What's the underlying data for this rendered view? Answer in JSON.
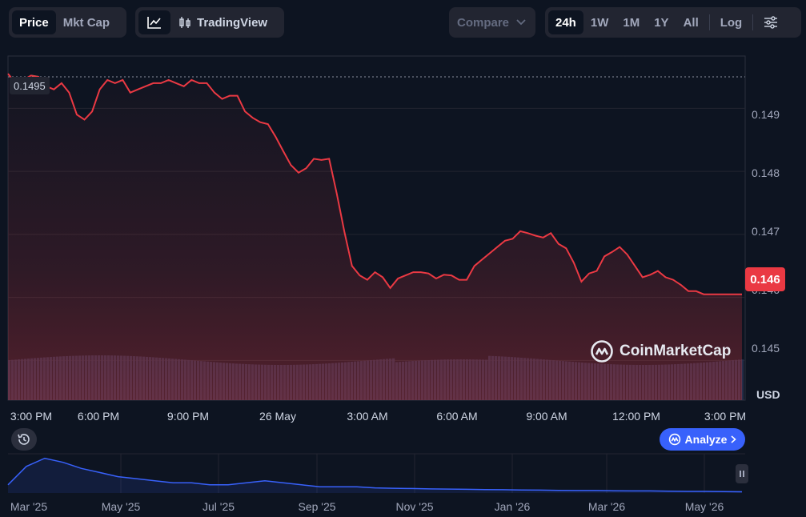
{
  "toolbar": {
    "price_label": "Price",
    "mktcap_label": "Mkt Cap",
    "tradingview_label": "TradingView",
    "compare_label": "Compare",
    "ranges": [
      "24h",
      "1W",
      "1M",
      "1Y",
      "All"
    ],
    "active_range": "24h",
    "log_label": "Log"
  },
  "badges": {
    "current_price": "0.146",
    "start_price": "0.1495"
  },
  "watermark": "CoinMarketCap",
  "analyze_label": "Analyze",
  "colors": {
    "background": "#0d1421",
    "down": "#ea3943",
    "up": "#16c784",
    "volume": "#2a3350",
    "navigator": "#3861fb"
  },
  "chart_data": [
    {
      "type": "line",
      "x_axis": [
        "3:00 PM",
        "6:00 PM",
        "9:00 PM",
        "26 May",
        "3:00 AM",
        "6:00 AM",
        "9:00 AM",
        "12:00 PM",
        "3:00 PM"
      ],
      "y_ticks": [
        0.149,
        0.148,
        0.147,
        0.146,
        0.145
      ],
      "y_tick_labels": [
        "0.149",
        "0.148",
        "0.147",
        "0.146",
        "0.145"
      ],
      "ylim": [
        0.14437,
        0.14983
      ],
      "unit_label": "USD",
      "reference_price": 0.1495,
      "grid": true,
      "series": [
        {
          "x": [
            0,
            0.25,
            0.5,
            0.75,
            1,
            1.25,
            1.5,
            1.75,
            2,
            2.25,
            2.5,
            2.75,
            3,
            3.25,
            3.5,
            3.75,
            4,
            4.25,
            4.5,
            4.75,
            5,
            5.25,
            5.5,
            5.75,
            6,
            6.25,
            6.5,
            6.75,
            7,
            7.25,
            7.5,
            7.75,
            8,
            8.25,
            8.5,
            8.75,
            9,
            9.25,
            9.5,
            9.75,
            10,
            10.25,
            10.5,
            10.75,
            11,
            11.25,
            11.5,
            11.75,
            12,
            12.25,
            12.5,
            12.75,
            13,
            13.25,
            13.5,
            13.75,
            14,
            14.25,
            14.5,
            14.75,
            15,
            15.25,
            15.5,
            15.75,
            16,
            16.25,
            16.5,
            16.75,
            17,
            17.25,
            17.5,
            17.75,
            18,
            18.25,
            18.5,
            18.75,
            19,
            19.25,
            19.5,
            19.75,
            20,
            20.25,
            20.5,
            20.75,
            21,
            21.25,
            21.5,
            21.75,
            22,
            22.25,
            22.5,
            22.75,
            23,
            23.25,
            23.5,
            23.75,
            24
          ],
          "values": [
            0.14955,
            0.1494,
            0.14945,
            0.14952,
            0.1495,
            0.14935,
            0.1493,
            0.1494,
            0.14925,
            0.1489,
            0.14882,
            0.14895,
            0.1493,
            0.14945,
            0.1494,
            0.14945,
            0.14925,
            0.1493,
            0.14935,
            0.1494,
            0.1494,
            0.14945,
            0.1494,
            0.14935,
            0.14945,
            0.1494,
            0.1494,
            0.14925,
            0.14915,
            0.1492,
            0.1492,
            0.14895,
            0.14885,
            0.14878,
            0.14875,
            0.14855,
            0.14832,
            0.1481,
            0.14798,
            0.14805,
            0.1482,
            0.14818,
            0.1482,
            0.14765,
            0.14704,
            0.1465,
            0.14635,
            0.14628,
            0.1464,
            0.14632,
            0.14615,
            0.1463,
            0.14635,
            0.1464,
            0.1464,
            0.14638,
            0.1463,
            0.14636,
            0.14635,
            0.14628,
            0.14628,
            0.1465,
            0.1466,
            0.1467,
            0.1468,
            0.1469,
            0.14693,
            0.14705,
            0.14702,
            0.14698,
            0.14695,
            0.14702,
            0.14685,
            0.14678,
            0.14655,
            0.14625,
            0.14638,
            0.14642,
            0.14665,
            0.14672,
            0.1468,
            0.14668,
            0.1465,
            0.14632,
            0.14636,
            0.14642,
            0.14632,
            0.14628,
            0.1462,
            0.1461,
            0.1461,
            0.14605,
            0.14605,
            0.14605,
            0.14605,
            0.14605,
            0.14605
          ]
        }
      ]
    },
    {
      "type": "area",
      "name": "navigator",
      "x_axis": [
        "Mar '25",
        "May '25",
        "Jul '25",
        "Sep '25",
        "Nov '25",
        "Jan '26",
        "Mar '26",
        "May '26"
      ],
      "values": [
        0.18,
        0.27,
        0.31,
        0.29,
        0.26,
        0.24,
        0.22,
        0.21,
        0.2,
        0.19,
        0.19,
        0.18,
        0.18,
        0.19,
        0.2,
        0.19,
        0.18,
        0.17,
        0.17,
        0.17,
        0.165,
        0.163,
        0.162,
        0.16,
        0.159,
        0.158,
        0.157,
        0.156,
        0.155,
        0.154,
        0.153,
        0.152,
        0.152,
        0.151,
        0.15,
        0.15,
        0.149,
        0.148,
        0.148,
        0.147,
        0.146
      ]
    }
  ]
}
